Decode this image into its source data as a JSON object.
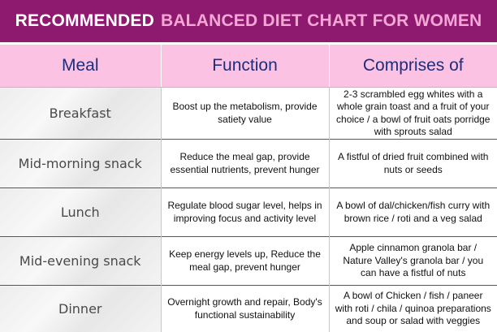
{
  "banner": {
    "title_part1": "RECOMMENDED",
    "title_part2": "BALANCED DIET CHART FOR WOMEN"
  },
  "table": {
    "headers": [
      "Meal",
      "Function",
      "Comprises of"
    ],
    "rows": [
      {
        "meal": "Breakfast",
        "function": "Boost up the metabolism, provide satiety value",
        "comprises": "2-3 scrambled egg whites with a whole grain toast and a fruit of your choice / a bowl of fruit oats porridge with sprouts salad"
      },
      {
        "meal": "Mid-morning snack",
        "function": "Reduce the meal gap, provide essential nutrients, prevent hunger",
        "comprises": "A fistful of dried fruit combined with nuts or seeds"
      },
      {
        "meal": "Lunch",
        "function": "Regulate blood sugar level, helps in improving focus and activity level",
        "comprises": "A bowl of dal/chicken/fish curry with brown rice / roti and a veg salad"
      },
      {
        "meal": "Mid-evening snack",
        "function": "Keep energy levels up, Reduce the meal gap, prevent hunger",
        "comprises": "Apple cinnamon granola bar / Nature Valley's granola bar / you can have a fistful of nuts"
      },
      {
        "meal": "Dinner",
        "function": "Overnight growth and repair, Body's functional sustainability",
        "comprises": "A bowl of Chicken / fish / paneer with roti / chila / quinoa preparations and soup or salad with veggies"
      }
    ]
  },
  "colors": {
    "banner_bg": "#8e1a6f",
    "banner_accent_text": "#f4a7d6",
    "header_bg": "#fcc2e3",
    "header_text": "#1f2d7a",
    "row_divider": "#9d2a7d"
  }
}
